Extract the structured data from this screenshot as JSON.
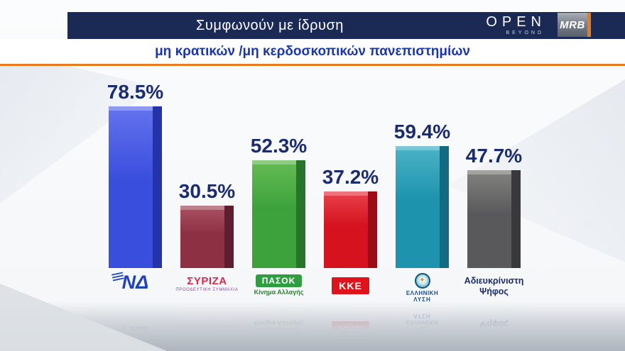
{
  "header": {
    "title": "Συμφωνούν με ίδρυση",
    "open_logo": {
      "name": "OPEN",
      "tagline": "BEYOND"
    },
    "mrb_logo": "MRB"
  },
  "subtitle": "μη κρατικών /μη κερδοσκοπικών πανεπιστημίων",
  "colors": {
    "header_bg": "#1b2a55",
    "title_text": "#ffffff",
    "subtitle_text": "#1a38a8",
    "accent_orange": "#e87a20",
    "value_text": "#1b2c6e"
  },
  "chart_data": {
    "type": "bar",
    "title": "Συμφωνούν με ίδρυση",
    "subtitle": "μη κρατικών /μη κερδοσκοπικών πανεπιστημίων",
    "categories": [
      "ΝΔ",
      "ΣΥΡΙΖΑ ΠΡΟΟΔΕΥΤΙΚΗ ΣΥΜΜΑΧΙΑ",
      "ΠΑΣΟΚ Κίνημα Αλλαγής",
      "ΚΚΕ",
      "ΕΛΛΗΝΙΚΗ ΛΥΣΗ",
      "Αδιευκρίνιστη Ψήφος"
    ],
    "values": [
      78.5,
      30.5,
      52.3,
      37.2,
      59.4,
      47.7
    ],
    "value_labels": [
      "78.5%",
      "30.5%",
      "52.3%",
      "37.2%",
      "59.4%",
      "47.7%"
    ],
    "unit": "%",
    "ylim": [
      0,
      100
    ],
    "grid": false,
    "legend": "none",
    "bar_colors": [
      "#3a4ede",
      "#8e3044",
      "#3da23c",
      "#d6121f",
      "#1d93ad",
      "#59595b"
    ],
    "bar_colors_light": [
      "#6573ee",
      "#a85264",
      "#66bb55",
      "#e8414d",
      "#4bb3c6",
      "#82827f"
    ],
    "bar_colors_dark": [
      "#2433a8",
      "#5f1e2d",
      "#27752a",
      "#9c0c17",
      "#126b81",
      "#39393b"
    ]
  },
  "parties": [
    {
      "name": "ΝΔ"
    },
    {
      "name": "ΣΥΡΙΖΑ",
      "sub": "ΠΡΟΟΔΕΥΤΙΚΗ ΣΥΜΜΑΧΙΑ"
    },
    {
      "name": "ΠΑΣΟΚ",
      "sub": "Κίνημα Αλλαγής"
    },
    {
      "name": "ΚΚΕ"
    },
    {
      "name": "ΕΛΛΗΝΙΚΗ",
      "sub": "ΛΥΣΗ",
      "star": "✦"
    },
    {
      "name": "Αδιευκρίνιστη",
      "sub": "Ψήφος"
    }
  ]
}
